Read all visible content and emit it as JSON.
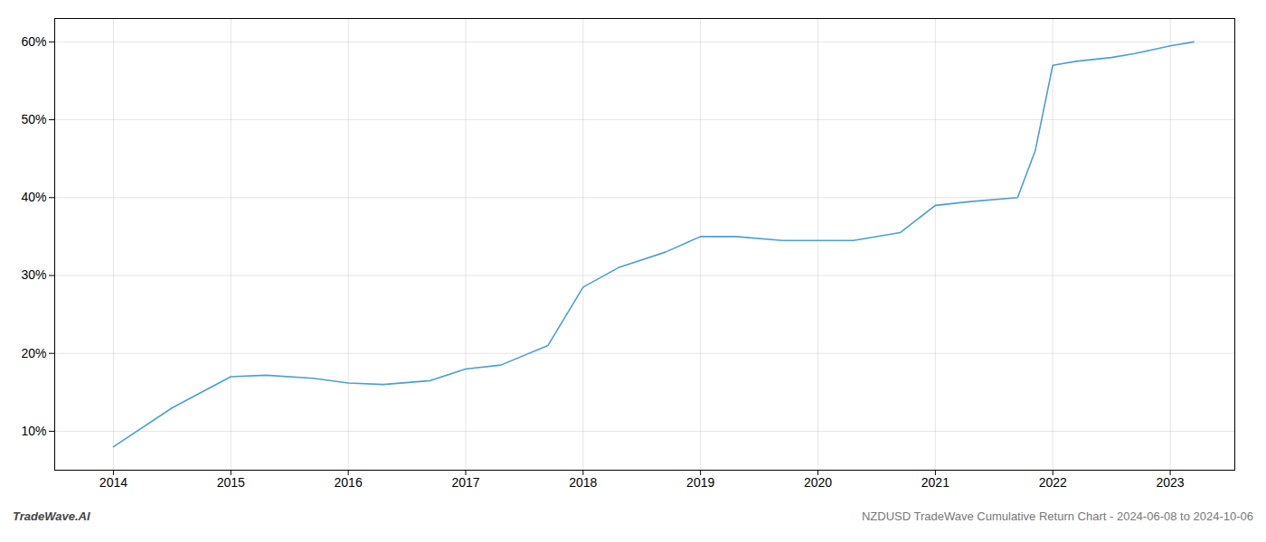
{
  "chart_data": {
    "type": "line",
    "x": [
      2014.0,
      2014.5,
      2015.0,
      2015.3,
      2015.7,
      2016.0,
      2016.3,
      2016.7,
      2017.0,
      2017.3,
      2017.7,
      2018.0,
      2018.3,
      2018.7,
      2019.0,
      2019.3,
      2019.7,
      2020.0,
      2020.3,
      2020.7,
      2021.0,
      2021.3,
      2021.7,
      2021.85,
      2022.0,
      2022.2,
      2022.5,
      2022.7,
      2023.0,
      2023.2
    ],
    "values": [
      8.0,
      13.0,
      17.0,
      17.2,
      16.8,
      16.2,
      16.0,
      16.5,
      18.0,
      18.5,
      21.0,
      28.5,
      31.0,
      33.0,
      35.0,
      35.0,
      34.5,
      34.5,
      34.5,
      35.5,
      39.0,
      39.5,
      40.0,
      46.0,
      57.0,
      57.5,
      58.0,
      58.5,
      59.5,
      60.0
    ],
    "color": "#4a9fd4",
    "xlim": [
      2013.5,
      2023.55
    ],
    "xticks": [
      2014,
      2015,
      2016,
      2017,
      2018,
      2019,
      2020,
      2021,
      2022,
      2023
    ],
    "ylim": [
      5,
      63
    ],
    "yticks": [
      {
        "value": 10,
        "label": "10%"
      },
      {
        "value": 20,
        "label": "20%"
      },
      {
        "value": 30,
        "label": "30%"
      },
      {
        "value": 40,
        "label": "40%"
      },
      {
        "value": 50,
        "label": "50%"
      },
      {
        "value": 60,
        "label": "60%"
      }
    ],
    "grid": true,
    "annotations": [
      "TradeWave.AI",
      "NZDUSD TradeWave Cumulative Return Chart - 2024-06-08 to 2024-10-06"
    ]
  }
}
